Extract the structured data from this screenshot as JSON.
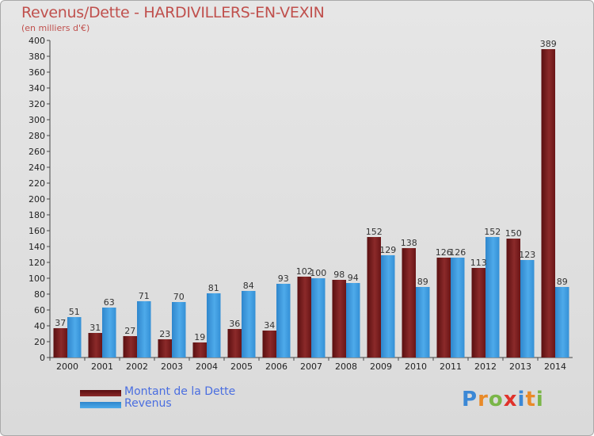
{
  "header": {
    "title": "Revenus/Dette - HARDIVILLERS-EN-VEXIN",
    "subtitle": "(en milliers d'€)"
  },
  "legend": [
    {
      "label": "Montant de la Dette",
      "color": "#7b1a1a"
    },
    {
      "label": "Revenus",
      "color": "#3c97dc"
    }
  ],
  "logo": {
    "text": "Proxiti",
    "colors": [
      "#3b88d6",
      "#e98a28",
      "#7ab648",
      "#e0322b",
      "#3b88d6",
      "#e98a28",
      "#7ab648"
    ]
  },
  "chart_data": {
    "type": "bar",
    "categories": [
      "2000",
      "2001",
      "2002",
      "2003",
      "2004",
      "2005",
      "2006",
      "2007",
      "2008",
      "2009",
      "2010",
      "2011",
      "2012",
      "2013",
      "2014"
    ],
    "series": [
      {
        "name": "Montant de la Dette",
        "values": [
          37,
          31,
          27,
          23,
          19,
          36,
          34,
          102,
          98,
          152,
          138,
          126,
          113,
          150,
          389
        ],
        "color": "#7b1a1a"
      },
      {
        "name": "Revenus",
        "values": [
          51,
          63,
          71,
          70,
          81,
          84,
          93,
          100,
          94,
          129,
          89,
          126,
          152,
          123,
          89
        ],
        "color": "#3c97dc"
      }
    ],
    "ylim": [
      0,
      400
    ],
    "yticks": [
      0,
      20,
      40,
      60,
      80,
      100,
      120,
      140,
      160,
      180,
      200,
      220,
      240,
      260,
      280,
      300,
      320,
      340,
      360,
      380,
      400
    ],
    "grid": false,
    "legend_position": "bottom-left"
  }
}
